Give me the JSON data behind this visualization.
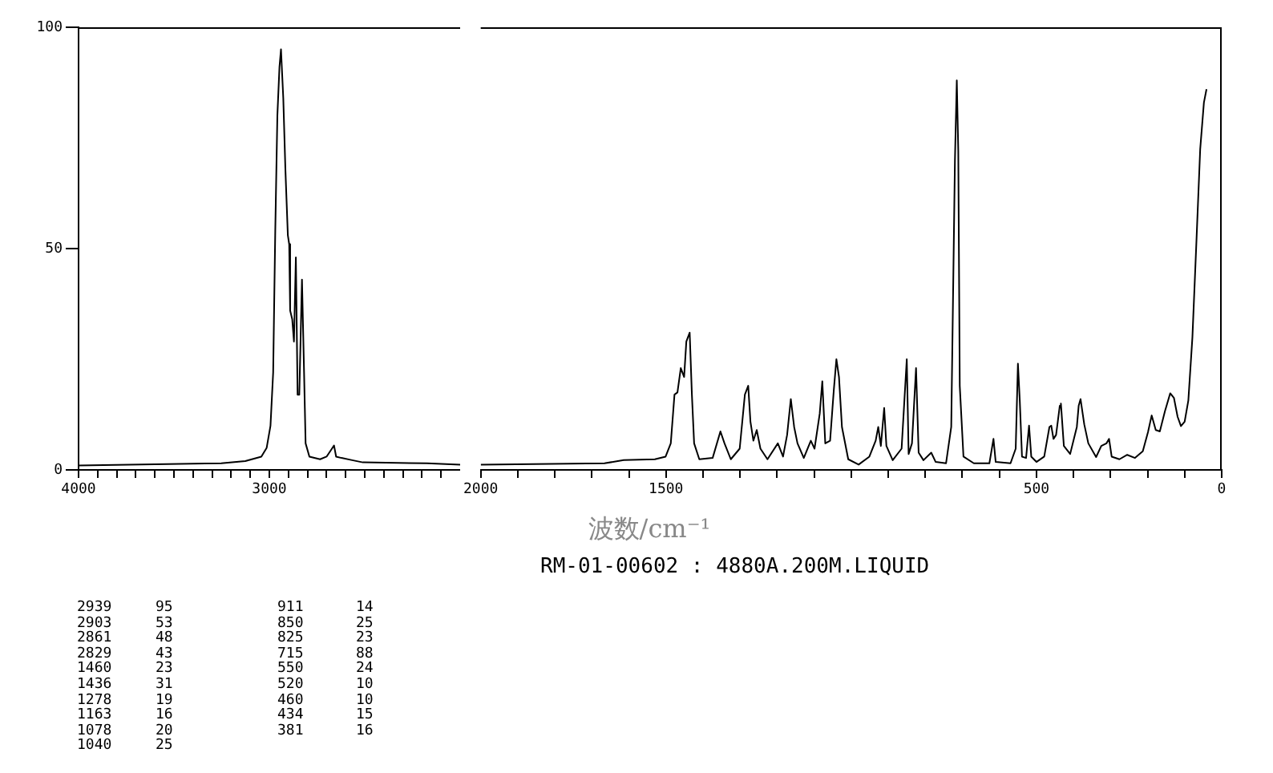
{
  "chart_data": [
    {
      "type": "line",
      "x": [
        4000,
        3252,
        3126,
        3042,
        3014,
        2994,
        2980,
        2969,
        2958,
        2947,
        2939,
        2933,
        2927,
        2916,
        2903,
        2896,
        2891,
        2880,
        2871,
        2861,
        2852,
        2843,
        2829,
        2818,
        2810,
        2790,
        2734,
        2700,
        2672,
        2661,
        2650,
        2622,
        2566,
        2510,
        2174,
        2000
      ],
      "values": [
        1,
        1.5,
        2,
        3,
        5,
        10,
        22,
        54,
        80,
        91,
        95,
        95,
        84,
        68,
        53,
        51,
        36,
        34,
        29,
        48,
        17,
        17,
        43,
        22,
        6,
        3,
        2.4,
        3,
        4.8,
        5.5,
        3,
        2.7,
        2.2,
        1.7,
        1.5,
        1.2
      ],
      "color": "#000000",
      "xlim": [
        4000,
        2000
      ],
      "xticks": [
        4000,
        {
          "value": 3900,
          "label": null
        },
        {
          "value": 3800,
          "label": null
        },
        {
          "value": 3700,
          "label": null
        },
        {
          "value": 3600,
          "label": null
        },
        {
          "value": 3500,
          "label": null
        },
        {
          "value": 3400,
          "label": null
        },
        {
          "value": 3300,
          "label": null
        },
        {
          "value": 3200,
          "label": null
        },
        {
          "value": 3100,
          "label": null
        },
        3000,
        {
          "value": 2900,
          "label": null
        },
        {
          "value": 2800,
          "label": null
        },
        {
          "value": 2700,
          "label": null
        },
        {
          "value": 2600,
          "label": null
        },
        {
          "value": 2500,
          "label": null
        },
        {
          "value": 2400,
          "label": null
        },
        {
          "value": 2300,
          "label": null
        },
        {
          "value": 2200,
          "label": null
        },
        {
          "value": 2100,
          "label": null
        }
      ],
      "ylim": [
        0,
        100
      ],
      "yticks": [
        0,
        50,
        100
      ],
      "grid": false,
      "legend": false,
      "marker": "none",
      "line_style": "solid"
    },
    {
      "type": "line",
      "xlabel": "波数/cm⁻¹",
      "subtitle": "RM-01-00602 : 4880A.200M.LIQUID",
      "x": [
        2000,
        1666,
        1614,
        1530,
        1501,
        1487,
        1477,
        1469,
        1460,
        1451,
        1445,
        1436,
        1430,
        1424,
        1410,
        1374,
        1353,
        1342,
        1325,
        1301,
        1287,
        1278,
        1272,
        1264,
        1255,
        1245,
        1226,
        1198,
        1184,
        1173,
        1163,
        1154,
        1145,
        1128,
        1109,
        1099,
        1085,
        1078,
        1070,
        1057,
        1047,
        1040,
        1033,
        1025,
        1008,
        980,
        951,
        934,
        927,
        920,
        911,
        905,
        888,
        864,
        850,
        845,
        836,
        825,
        818,
        805,
        784,
        772,
        744,
        730,
        720,
        715,
        711,
        707,
        697,
        669,
        627,
        616,
        610,
        570,
        556,
        550,
        545,
        539,
        528,
        520,
        514,
        500,
        479,
        465,
        460,
        454,
        447,
        437,
        434,
        426,
        409,
        391,
        386,
        381,
        371,
        360,
        339,
        325,
        311,
        304,
        297,
        276,
        255,
        234,
        213,
        199,
        189,
        178,
        167,
        153,
        139,
        129,
        119,
        110,
        100,
        90,
        79,
        68,
        58,
        48,
        41
      ],
      "values": [
        1.2,
        1.5,
        2.2,
        2.4,
        3,
        6,
        17,
        17.5,
        23,
        21,
        29,
        31,
        17,
        6,
        2.4,
        2.7,
        8.7,
        6,
        2.4,
        4.8,
        17,
        19,
        10.9,
        6.6,
        9,
        4.8,
        2.4,
        6,
        3,
        7.9,
        16,
        9.7,
        6,
        2.7,
        6.6,
        4.8,
        12.7,
        20,
        6,
        6.6,
        18,
        25,
        21,
        9.7,
        2.4,
        1.2,
        3,
        6.6,
        9.7,
        5.4,
        14,
        5.4,
        2.2,
        4.8,
        25,
        3.6,
        6,
        23,
        3.9,
        2.2,
        3.9,
        1.8,
        1.5,
        9.7,
        70,
        88,
        72,
        19,
        3,
        1.5,
        1.5,
        7,
        1.8,
        1.5,
        4.8,
        24,
        15.7,
        3,
        2.7,
        10,
        3,
        1.8,
        3,
        9.7,
        10,
        7,
        7.9,
        14.5,
        15,
        5.4,
        3.6,
        9.7,
        14.5,
        16,
        10.3,
        6,
        2.9,
        5.4,
        6,
        7,
        3,
        2.4,
        3.4,
        2.7,
        4.2,
        8.5,
        12.3,
        9,
        8.7,
        13.3,
        17.3,
        16.3,
        12,
        9.9,
        10.9,
        15.7,
        30,
        52,
        72.5,
        83,
        86
      ],
      "color": "#000000",
      "xlim": [
        2000,
        0
      ],
      "xticks": [
        2000,
        {
          "value": 1900,
          "label": null
        },
        {
          "value": 1800,
          "label": null
        },
        {
          "value": 1700,
          "label": null
        },
        {
          "value": 1600,
          "label": null
        },
        1500,
        {
          "value": 1400,
          "label": null
        },
        {
          "value": 1300,
          "label": null
        },
        {
          "value": 1200,
          "label": null
        },
        {
          "value": 1100,
          "label": null
        },
        {
          "value": 1000,
          "label": null
        },
        {
          "value": 900,
          "label": null
        },
        {
          "value": 800,
          "label": null
        },
        {
          "value": 700,
          "label": null
        },
        {
          "value": 600,
          "label": null
        },
        500,
        {
          "value": 400,
          "label": null
        },
        {
          "value": 300,
          "label": null
        },
        {
          "value": 200,
          "label": null
        },
        {
          "value": 100,
          "label": null
        },
        0
      ],
      "ylim": [
        0,
        100
      ],
      "tick_labels": "x",
      "grid": false,
      "legend": false,
      "marker": "none",
      "line_style": "solid",
      "annotations": [
        "2939 95",
        "2903 53",
        "2861 48",
        "2829 43",
        "1460 23",
        "1436 31",
        "1278 19",
        "1163 16",
        "1078 20",
        "1040 25",
        "911 14",
        "850 25",
        "825 23",
        "715 88",
        "550 24",
        "520 10",
        "460 10",
        "434 15",
        "381 16"
      ]
    }
  ]
}
